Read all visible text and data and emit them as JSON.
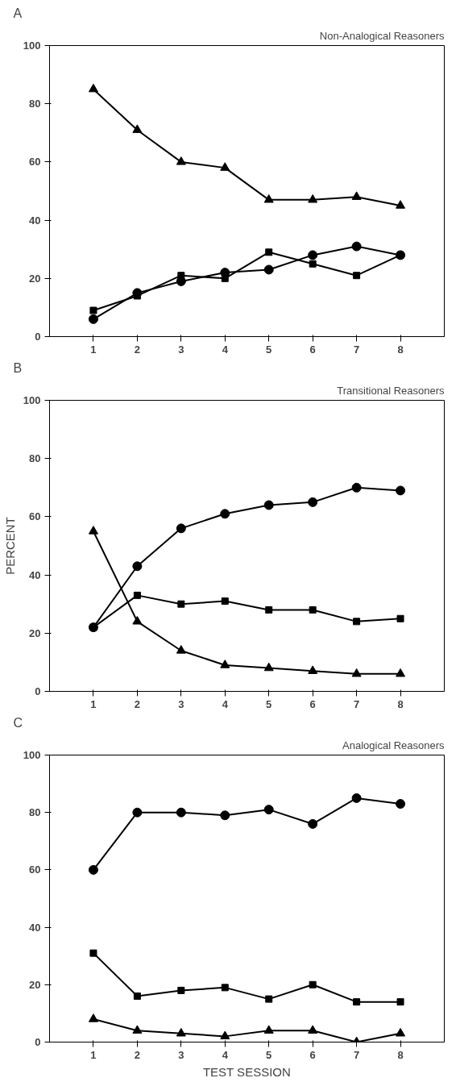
{
  "chart_data": [
    {
      "type": "line",
      "title": "A",
      "subtitle": "Non-Analogical Reasoners",
      "x": [
        1,
        2,
        3,
        4,
        5,
        6,
        7,
        8
      ],
      "xlim": [
        0,
        9
      ],
      "xticks": [
        1,
        2,
        3,
        4,
        5,
        6,
        7,
        8
      ],
      "ylim": [
        0,
        100
      ],
      "yticks": [
        0,
        20,
        40,
        60,
        80,
        100
      ],
      "grid": false,
      "series": [
        {
          "color": "#000000",
          "marker": "triangle",
          "values": [
            85,
            71,
            60,
            58,
            47,
            47,
            48,
            45
          ]
        },
        {
          "color": "#000000",
          "marker": "square",
          "values": [
            9,
            14,
            21,
            20,
            29,
            25,
            21,
            28
          ]
        },
        {
          "color": "#000000",
          "marker": "circle",
          "values": [
            6,
            15,
            19,
            22,
            23,
            28,
            31,
            28
          ]
        }
      ]
    },
    {
      "type": "line",
      "title": "B",
      "subtitle": "Transitional Reasoners",
      "ylabel": "PERCENT",
      "x": [
        1,
        2,
        3,
        4,
        5,
        6,
        7,
        8
      ],
      "xlim": [
        0,
        9
      ],
      "xticks": [
        1,
        2,
        3,
        4,
        5,
        6,
        7,
        8
      ],
      "ylim": [
        0,
        100
      ],
      "yticks": [
        0,
        20,
        40,
        60,
        80,
        100
      ],
      "grid": false,
      "series": [
        {
          "color": "#000000",
          "marker": "circle",
          "values": [
            22,
            43,
            56,
            61,
            64,
            65,
            70,
            69
          ]
        },
        {
          "color": "#000000",
          "marker": "square",
          "values": [
            22,
            33,
            30,
            31,
            28,
            28,
            24,
            25
          ]
        },
        {
          "color": "#000000",
          "marker": "triangle",
          "values": [
            55,
            24,
            14,
            9,
            8,
            7,
            6,
            6
          ]
        }
      ]
    },
    {
      "type": "line",
      "title": "C",
      "subtitle": "Analogical Reasoners",
      "xlabel": "TEST SESSION",
      "x": [
        1,
        2,
        3,
        4,
        5,
        6,
        7,
        8
      ],
      "xlim": [
        0,
        9
      ],
      "xticks": [
        1,
        2,
        3,
        4,
        5,
        6,
        7,
        8
      ],
      "ylim": [
        0,
        100
      ],
      "yticks": [
        0,
        20,
        40,
        60,
        80,
        100
      ],
      "grid": false,
      "series": [
        {
          "color": "#000000",
          "marker": "circle",
          "values": [
            60,
            80,
            80,
            79,
            81,
            76,
            85,
            83
          ]
        },
        {
          "color": "#000000",
          "marker": "square",
          "values": [
            31,
            16,
            18,
            19,
            15,
            20,
            14,
            14
          ]
        },
        {
          "color": "#000000",
          "marker": "triangle",
          "values": [
            8,
            4,
            3,
            2,
            4,
            4,
            0,
            3
          ]
        }
      ]
    }
  ]
}
